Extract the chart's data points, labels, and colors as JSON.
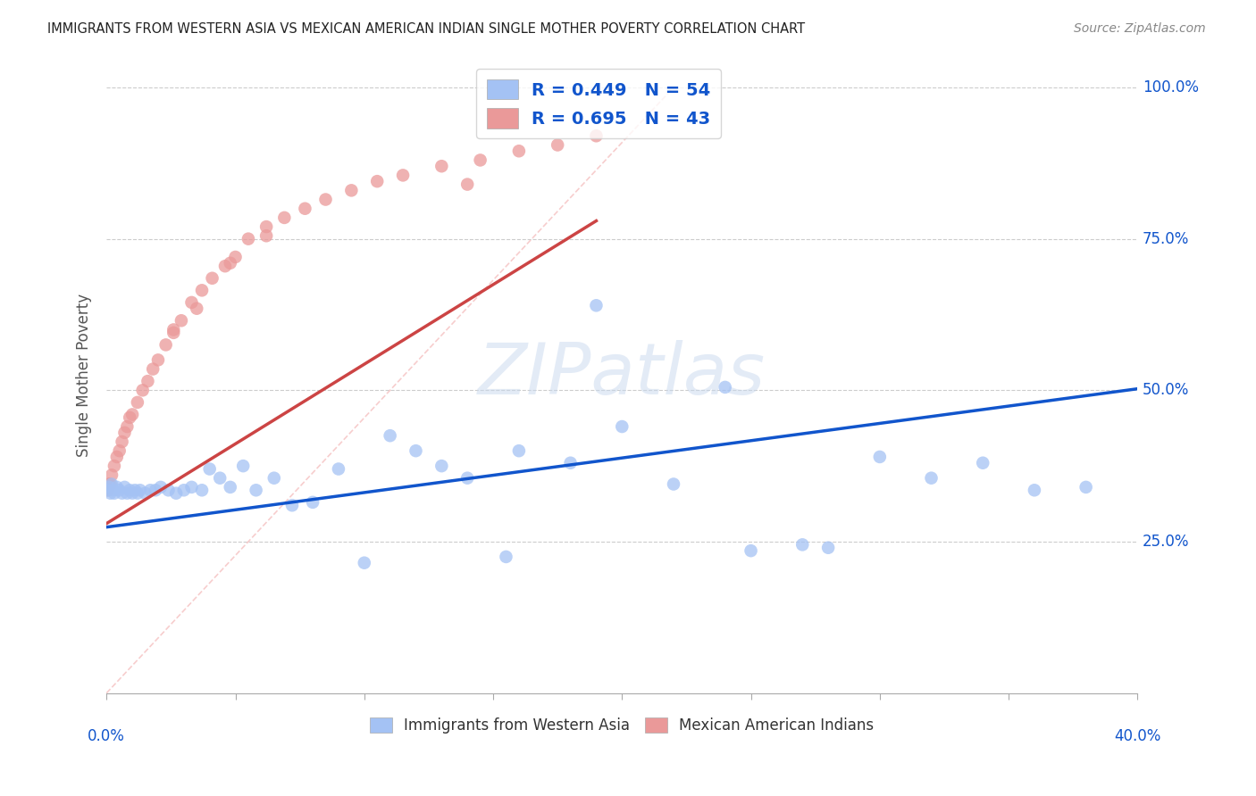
{
  "title": "IMMIGRANTS FROM WESTERN ASIA VS MEXICAN AMERICAN INDIAN SINGLE MOTHER POVERTY CORRELATION CHART",
  "source": "Source: ZipAtlas.com",
  "ylabel": "Single Mother Poverty",
  "legend_blue_r": "R = 0.449",
  "legend_blue_n": "N = 54",
  "legend_pink_r": "R = 0.695",
  "legend_pink_n": "N = 43",
  "blue_color": "#a4c2f4",
  "pink_color": "#ea9999",
  "blue_line_color": "#1155cc",
  "pink_line_color": "#cc4444",
  "watermark_text": "ZIPatlas",
  "xlim": [
    0.0,
    0.4
  ],
  "ylim": [
    0.0,
    1.05
  ],
  "grid_color": "#cccccc",
  "background_color": "#ffffff",
  "blue_scatter_x": [
    0.0005,
    0.001,
    0.0015,
    0.002,
    0.0025,
    0.003,
    0.004,
    0.005,
    0.006,
    0.007,
    0.008,
    0.009,
    0.01,
    0.011,
    0.012,
    0.013,
    0.015,
    0.017,
    0.019,
    0.021,
    0.024,
    0.027,
    0.03,
    0.033,
    0.037,
    0.04,
    0.044,
    0.048,
    0.053,
    0.058,
    0.065,
    0.072,
    0.08,
    0.09,
    0.1,
    0.11,
    0.12,
    0.13,
    0.14,
    0.16,
    0.18,
    0.2,
    0.22,
    0.25,
    0.27,
    0.3,
    0.32,
    0.34,
    0.36,
    0.38,
    0.24,
    0.155,
    0.28,
    0.19
  ],
  "blue_scatter_y": [
    0.335,
    0.34,
    0.33,
    0.345,
    0.335,
    0.33,
    0.34,
    0.335,
    0.33,
    0.34,
    0.33,
    0.335,
    0.33,
    0.335,
    0.33,
    0.335,
    0.33,
    0.335,
    0.335,
    0.34,
    0.335,
    0.33,
    0.335,
    0.34,
    0.335,
    0.37,
    0.355,
    0.34,
    0.375,
    0.335,
    0.355,
    0.31,
    0.315,
    0.37,
    0.215,
    0.425,
    0.4,
    0.375,
    0.355,
    0.4,
    0.38,
    0.44,
    0.345,
    0.235,
    0.245,
    0.39,
    0.355,
    0.38,
    0.335,
    0.34,
    0.505,
    0.225,
    0.24,
    0.64
  ],
  "pink_scatter_x": [
    0.0005,
    0.001,
    0.0015,
    0.002,
    0.003,
    0.004,
    0.005,
    0.006,
    0.007,
    0.008,
    0.009,
    0.01,
    0.012,
    0.014,
    0.016,
    0.018,
    0.02,
    0.023,
    0.026,
    0.029,
    0.033,
    0.037,
    0.041,
    0.046,
    0.05,
    0.055,
    0.062,
    0.069,
    0.077,
    0.085,
    0.095,
    0.105,
    0.115,
    0.13,
    0.145,
    0.16,
    0.175,
    0.19,
    0.026,
    0.035,
    0.048,
    0.062,
    0.14
  ],
  "pink_scatter_y": [
    0.335,
    0.345,
    0.345,
    0.36,
    0.375,
    0.39,
    0.4,
    0.415,
    0.43,
    0.44,
    0.455,
    0.46,
    0.48,
    0.5,
    0.515,
    0.535,
    0.55,
    0.575,
    0.595,
    0.615,
    0.645,
    0.665,
    0.685,
    0.705,
    0.72,
    0.75,
    0.77,
    0.785,
    0.8,
    0.815,
    0.83,
    0.845,
    0.855,
    0.87,
    0.88,
    0.895,
    0.905,
    0.92,
    0.6,
    0.635,
    0.71,
    0.755,
    0.84
  ],
  "diag_color": "#ffbbbb",
  "diag_line_style": "--"
}
